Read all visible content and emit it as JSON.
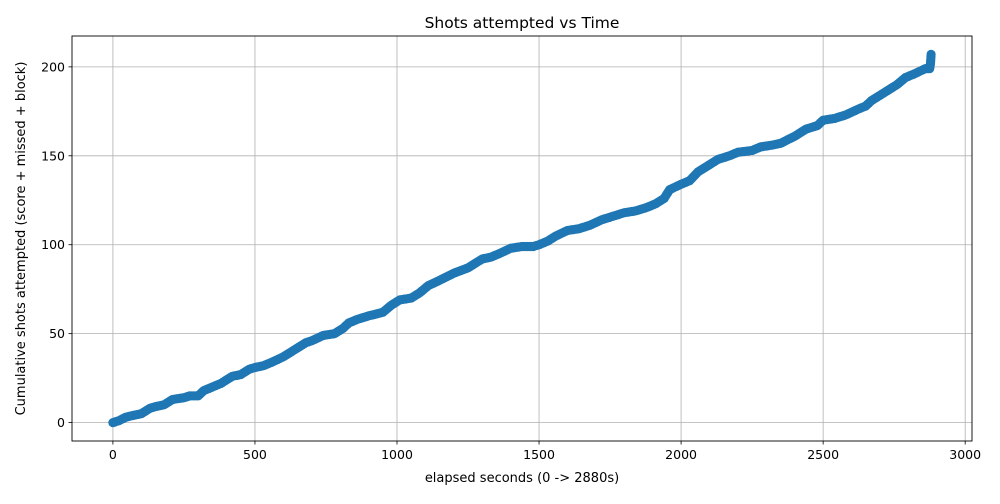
{
  "chart_data": {
    "type": "scatter",
    "title": "Shots attempted vs Time",
    "xlabel": "elapsed seconds (0 -> 2880s)",
    "ylabel": "Cumulative shots attempted (score + missed + block)",
    "xlim": [
      -144,
      3024
    ],
    "ylim": [
      -10.35,
      217.35
    ],
    "xticks": [
      0,
      500,
      1000,
      1500,
      2000,
      2500,
      3000
    ],
    "yticks": [
      0,
      50,
      100,
      150,
      200
    ],
    "grid": true,
    "legend": "none",
    "color": "#1f77b4",
    "series": [
      {
        "x": [
          0,
          20,
          45,
          70,
          100,
          130,
          150,
          180,
          210,
          250,
          270,
          300,
          320,
          350,
          380,
          420,
          450,
          480,
          500,
          530,
          560,
          600,
          640,
          680,
          700,
          740,
          780,
          810,
          830,
          860,
          900,
          950,
          980,
          1010,
          1050,
          1080,
          1110,
          1150,
          1200,
          1250,
          1300,
          1330,
          1360,
          1400,
          1440,
          1480,
          1500,
          1530,
          1560,
          1600,
          1640,
          1680,
          1720,
          1760,
          1800,
          1840,
          1880,
          1910,
          1940,
          1960,
          2000,
          2030,
          2060,
          2100,
          2130,
          2170,
          2200,
          2250,
          2280,
          2320,
          2350,
          2400,
          2440,
          2480,
          2500,
          2540,
          2580,
          2620,
          2650,
          2670,
          2700,
          2720,
          2760,
          2790,
          2820,
          2860,
          2875,
          2878,
          2880
        ],
        "y": [
          0,
          1,
          3,
          4,
          5,
          8,
          9,
          10,
          13,
          14,
          15,
          15,
          18,
          20,
          22,
          26,
          27,
          30,
          31,
          32,
          34,
          37,
          41,
          45,
          46,
          49,
          50,
          53,
          56,
          58,
          60,
          62,
          66,
          69,
          70,
          73,
          77,
          80,
          84,
          87,
          92,
          93,
          95,
          98,
          99,
          99,
          100,
          102,
          105,
          108,
          109,
          111,
          114,
          116,
          118,
          119,
          121,
          123,
          126,
          131,
          134,
          136,
          141,
          145,
          148,
          150,
          152,
          153,
          155,
          156,
          157,
          161,
          165,
          167,
          170,
          171,
          173,
          176,
          178,
          181,
          184,
          186,
          190,
          194,
          196,
          199,
          199,
          202,
          207
        ]
      }
    ]
  }
}
